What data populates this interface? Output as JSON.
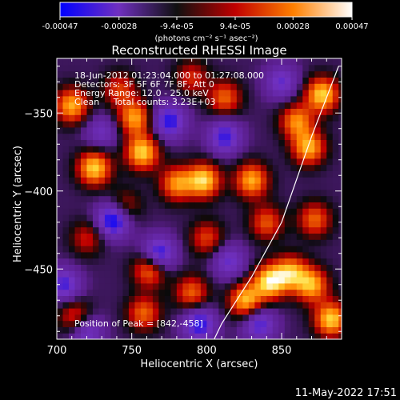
{
  "chart_data": {
    "type": "heatmap",
    "title": "Reconstructed RHESSI Image",
    "xlabel": "Heliocentric X (arcsec)",
    "ylabel": "Heliocentric Y (arcsec)",
    "xlim": [
      700,
      890
    ],
    "ylim": [
      -495,
      -315
    ],
    "x_ticks": [
      "700",
      "750",
      "800",
      "850"
    ],
    "x_tick_values": [
      700,
      750,
      800,
      850
    ],
    "y_ticks": [
      "-350",
      "-400",
      "-450"
    ],
    "y_tick_values": [
      -350,
      -400,
      -450
    ],
    "colorbar": {
      "ticks": [
        "-0.00047",
        "-0.00028",
        "-9.4e-05",
        "9.4e-05",
        "0.00028",
        "0.00047"
      ],
      "tick_values": [
        -0.00047,
        -0.00028,
        -9.4e-05,
        9.4e-05,
        0.00028,
        0.00047
      ],
      "range": [
        -0.00047,
        0.00047
      ],
      "unit_label": "(photons cm⁻² s⁻¹ asec⁻²)",
      "colors": [
        "#0000ff",
        "#7030c0",
        "#101010",
        "#c00000",
        "#ff8000",
        "#ffffff"
      ]
    },
    "annotations": {
      "time": "18-Jun-2012 01:23:04.000 to 01:27:08.000",
      "detectors": "Detectors: 3F 5F 6F 7F 8F, Att 0",
      "energy": "Energy Range: 12.0 - 25.0 keV",
      "clean": "Clean     Total counts: 3.23E+03",
      "peak": "Position of Peak = [842,-458]"
    },
    "peak_position": [
      842,
      -458
    ],
    "limb_curve": {
      "points": [
        [
          888,
          -320
        ],
        [
          870,
          -365
        ],
        [
          850,
          -420
        ],
        [
          830,
          -455
        ],
        [
          810,
          -485
        ],
        [
          805,
          -495
        ]
      ]
    },
    "bright_sources": [
      {
        "x": 725,
        "y": -385,
        "v": 0.00045
      },
      {
        "x": 710,
        "y": -345,
        "v": 0.0004
      },
      {
        "x": 742,
        "y": -335,
        "v": 0.00025
      },
      {
        "x": 752,
        "y": -353,
        "v": 0.00038
      },
      {
        "x": 757,
        "y": -375,
        "v": 0.00045
      },
      {
        "x": 798,
        "y": -393,
        "v": 0.00046
      },
      {
        "x": 780,
        "y": -395,
        "v": 0.00036
      },
      {
        "x": 830,
        "y": -393,
        "v": 0.0004
      },
      {
        "x": 860,
        "y": -355,
        "v": 0.00035
      },
      {
        "x": 877,
        "y": -338,
        "v": 0.00045
      },
      {
        "x": 868,
        "y": -372,
        "v": 0.0004
      },
      {
        "x": 842,
        "y": -458,
        "v": 0.00047
      },
      {
        "x": 826,
        "y": -470,
        "v": 0.00042
      },
      {
        "x": 856,
        "y": -452,
        "v": 0.00038
      },
      {
        "x": 883,
        "y": -482,
        "v": 0.00045
      },
      {
        "x": 870,
        "y": -460,
        "v": 0.0004
      },
      {
        "x": 872,
        "y": -418,
        "v": 0.0003
      },
      {
        "x": 762,
        "y": -450,
        "v": 0.00035
      },
      {
        "x": 758,
        "y": -478,
        "v": 0.0003
      },
      {
        "x": 790,
        "y": -465,
        "v": 0.0003
      },
      {
        "x": 720,
        "y": -430,
        "v": 0.0002
      },
      {
        "x": 812,
        "y": -340,
        "v": 0.0003
      },
      {
        "x": 790,
        "y": -327,
        "v": 0.00022
      },
      {
        "x": 745,
        "y": -410,
        "v": 0.00022
      },
      {
        "x": 800,
        "y": -430,
        "v": 0.00025
      },
      {
        "x": 840,
        "y": -420,
        "v": 0.00028
      },
      {
        "x": 712,
        "y": -480,
        "v": 0.00025
      }
    ],
    "dark_sources": [
      {
        "x": 738,
        "y": -418,
        "v": -0.00045
      },
      {
        "x": 768,
        "y": -440,
        "v": -0.00038
      },
      {
        "x": 705,
        "y": -460,
        "v": -0.0003
      },
      {
        "x": 775,
        "y": -355,
        "v": -0.00035
      },
      {
        "x": 812,
        "y": -365,
        "v": -0.00032
      },
      {
        "x": 835,
        "y": -485,
        "v": -0.0003
      },
      {
        "x": 720,
        "y": -490,
        "v": -0.00025
      },
      {
        "x": 795,
        "y": -485,
        "v": -0.00035
      },
      {
        "x": 815,
        "y": -445,
        "v": -0.00025
      },
      {
        "x": 850,
        "y": -330,
        "v": -0.00025
      },
      {
        "x": 730,
        "y": -362,
        "v": -0.0002
      }
    ],
    "grid": false
  },
  "footer": {
    "timestamp": "11-May-2022 17:51"
  }
}
